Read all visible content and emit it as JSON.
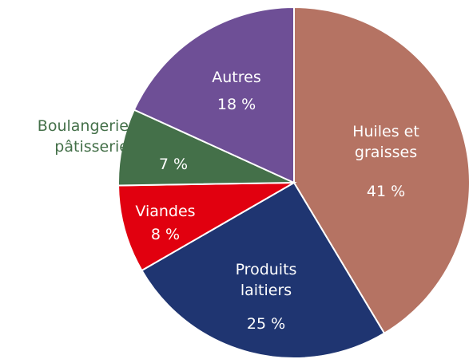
{
  "chart_data": {
    "type": "pie",
    "categories": [
      "Huiles et graisses",
      "Produits laitiers",
      "Viandes",
      "Boulangerie pâtisserie",
      "Autres"
    ],
    "values": [
      41,
      25,
      8,
      7,
      18
    ],
    "value_labels": [
      "41 %",
      "25 %",
      "8 %",
      "7 %",
      "18 %"
    ],
    "colors": [
      "#b57363",
      "#1f3571",
      "#e1000f",
      "#447049",
      "#6e4f96"
    ]
  }
}
